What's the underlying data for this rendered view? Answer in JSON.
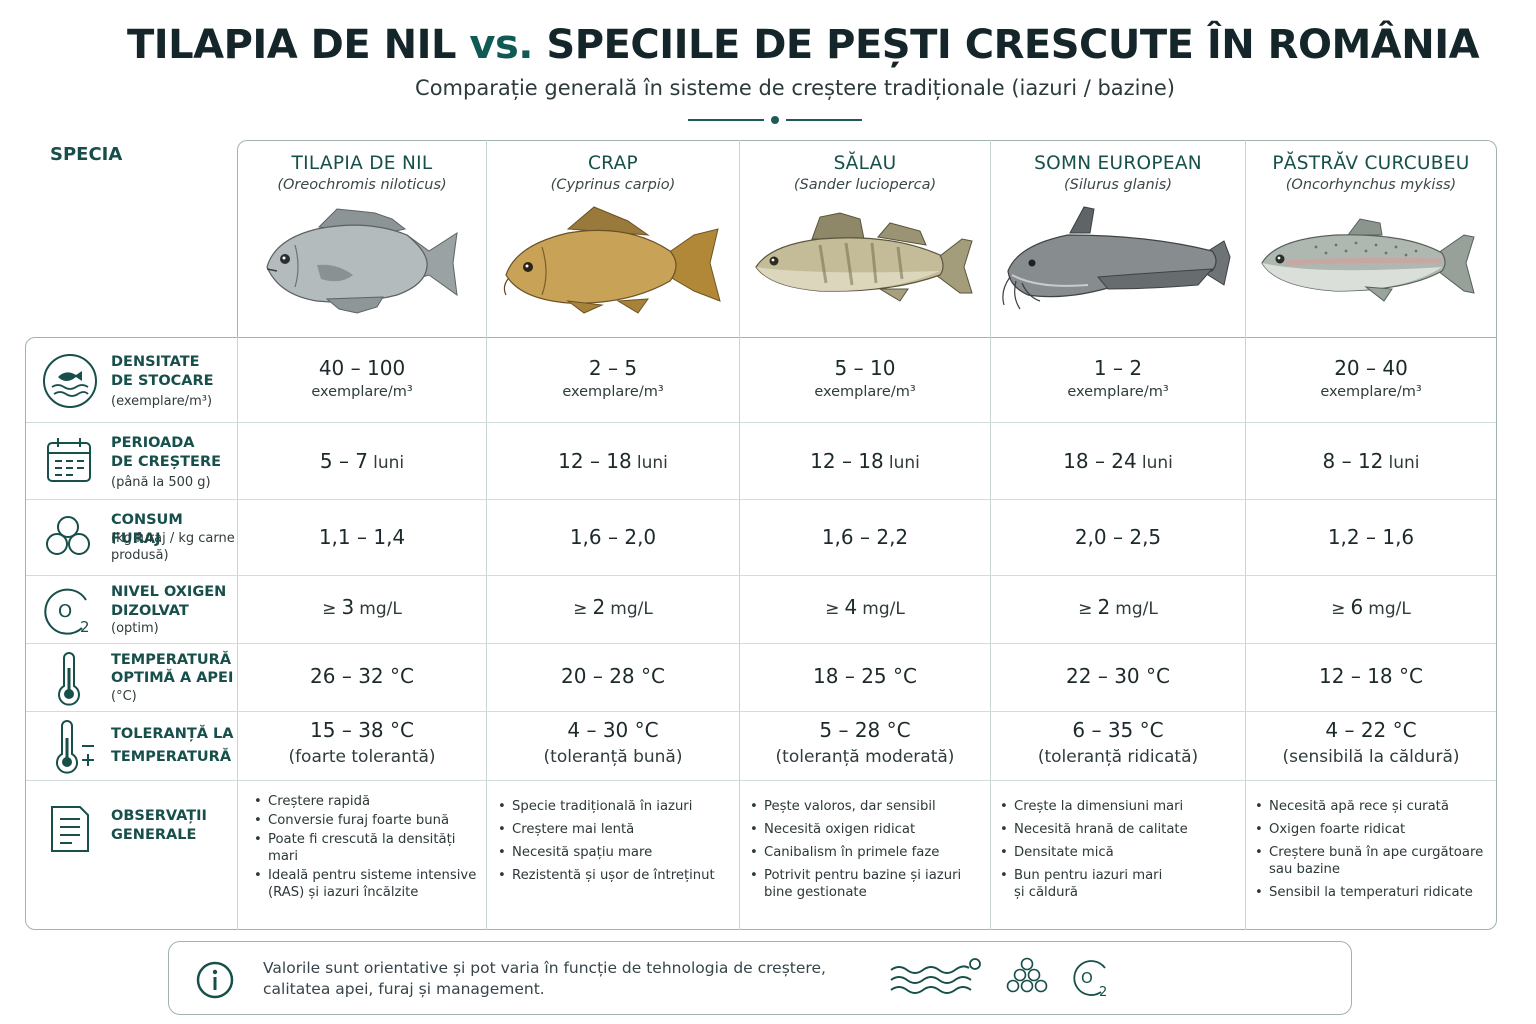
{
  "header": {
    "title_part1": "TILAPIA DE NIL",
    "title_vs": "vs.",
    "title_part2": "SPECIILE DE PEȘTI CRESCUTE ÎN ROMÂNIA",
    "subtitle": "Comparație generală în sisteme de creștere tradiționale (iazuri / bazine)"
  },
  "table": {
    "corner_label": "SPECIA",
    "species": [
      {
        "name": "TILAPIA DE NIL",
        "latin": "(Oreochromis niloticus)",
        "icon": "tilapia-fish-illustration"
      },
      {
        "name": "CRAP",
        "latin": "(Cyprinus carpio)",
        "icon": "carp-fish-illustration"
      },
      {
        "name": "SĂLAU",
        "latin": "(Sander lucioperca)",
        "icon": "zander-fish-illustration"
      },
      {
        "name": "SOMN EUROPEAN",
        "latin": "(Silurus glanis)",
        "icon": "catfish-illustration"
      },
      {
        "name": "PĂSTRĂV CURCUBEU",
        "latin": "(Oncorhynchus mykiss)",
        "icon": "trout-fish-illustration"
      }
    ],
    "rows": {
      "density": {
        "label1": "DENSITATE",
        "label2": "DE STOCARE",
        "sub": "(exemplare/m³)",
        "icon": "fish-water-icon",
        "values": [
          "40 – 100",
          "2 – 5",
          "5 – 10",
          "1 – 2",
          "20 – 40"
        ],
        "unit": "exemplare/m³"
      },
      "growth": {
        "label1": "PERIOADA",
        "label2": "DE CREȘTERE",
        "sub": "(până la 500 g)",
        "icon": "calendar-icon",
        "values": [
          "5 – 7",
          "12 – 18",
          "12 – 18",
          "18 – 24",
          "8 – 12"
        ],
        "unit": "luni"
      },
      "feed": {
        "label1": "CONSUM FURAJ",
        "sub1": "(kg furaj / kg carne",
        "sub2": "produsă)",
        "icon": "feed-pellets-icon",
        "values": [
          "1,1 – 1,4",
          "1,6 – 2,0",
          "1,6 – 2,2",
          "2,0 – 2,5",
          "1,2 – 1,6"
        ]
      },
      "oxygen": {
        "label1": "NIVEL OXIGEN",
        "label2": "DIZOLVAT",
        "sub": "(optim)",
        "icon": "oxygen-o2-icon",
        "prefix": "≥",
        "values": [
          "3",
          "2",
          "4",
          "2",
          "6"
        ],
        "unit": "mg/L"
      },
      "temp": {
        "label1": "TEMPERATURĂ",
        "label2": "OPTIMĂ A APEI",
        "sub": "(°C)",
        "icon": "thermometer-icon",
        "values": [
          "26 – 32 °C",
          "20 – 28 °C",
          "18 – 25 °C",
          "22 – 30 °C",
          "12 – 18 °C"
        ]
      },
      "tolerance": {
        "label1": "TOLERANȚĂ LA",
        "label2": "TEMPERATURĂ",
        "icon": "thermometer-plus-minus-icon",
        "values": [
          "15 – 38 °C",
          "4 – 30 °C",
          "5 – 28 °C",
          "6 – 35 °C",
          "4 – 22 °C"
        ],
        "notes": [
          "(foarte tolerantă)",
          "(toleranță bună)",
          "(toleranță moderată)",
          "(toleranță ridicată)",
          "(sensibilă la căldură)"
        ]
      },
      "observations": {
        "label1": "OBSERVAȚII",
        "label2": "GENERALE",
        "icon": "document-notes-icon",
        "items": [
          [
            "Creștere rapidă",
            "Conversie furaj foarte bună",
            "Poate fi crescută la densități mari",
            "Ideală pentru sisteme intensive (RAS) și iazuri încălzite"
          ],
          [
            "Specie tradițională în iazuri",
            "Creștere mai lentă",
            "Necesită spațiu mare",
            "Rezistentă și ușor de întreținut"
          ],
          [
            "Pește valoros, dar sensibil",
            "Necesită oxigen ridicat",
            "Canibalism în primele faze",
            "Potrivit pentru bazine și iazuri bine gestionate"
          ],
          [
            "Crește la dimensiuni mari",
            "Necesită hrană de calitate",
            "Densitate mică",
            "Bun pentru iazuri mari și căldură"
          ],
          [
            "Necesită apă rece și curată",
            "Oxigen foarte ridicat",
            "Creștere bună în ape curgătoare sau bazine",
            "Sensibil la temperaturi ridicate"
          ]
        ]
      }
    }
  },
  "footer": {
    "line1": "Valorile sunt orientative și pot varia în funcție de tehnologia de creștere,",
    "line2": "calitatea apei, furaj și management.",
    "icon_info": "info-icon",
    "icons": [
      "water-waves-icon",
      "feed-pellets-icon",
      "oxygen-o2-icon"
    ]
  },
  "colors": {
    "accent": "#174f4b",
    "border": "#9fb4b1",
    "text": "#1d2a2b"
  }
}
